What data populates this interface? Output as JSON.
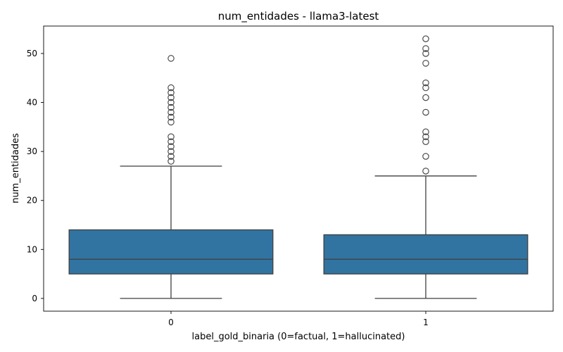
{
  "chart_data": {
    "type": "box",
    "title": "num_entidades - llama3-latest",
    "xlabel": "label_gold_binaria (0=factual, 1=hallucinated)",
    "ylabel": "num_entidades",
    "categories": [
      "0",
      "1"
    ],
    "ylim": [
      -2.6,
      55.6
    ],
    "yticks": [
      0,
      10,
      20,
      30,
      40,
      50
    ],
    "grid": false,
    "colors": {
      "box_fill": "#3274a1",
      "line": "#3f3f3f",
      "outlier_edge": "#3f3f3f",
      "axis": "#000000"
    },
    "boxes": [
      {
        "label": "0",
        "whisker_low": 0,
        "q1": 5,
        "median": 8,
        "q3": 14,
        "whisker_high": 27,
        "outliers": [
          28,
          29,
          30,
          31,
          32,
          33,
          36,
          37,
          38,
          39,
          40,
          41,
          42,
          43,
          49
        ]
      },
      {
        "label": "1",
        "whisker_low": 0,
        "q1": 5,
        "median": 8,
        "q3": 13,
        "whisker_high": 25,
        "outliers": [
          26,
          29,
          32,
          33,
          34,
          38,
          41,
          43,
          44,
          48,
          50,
          51,
          53
        ]
      }
    ]
  }
}
